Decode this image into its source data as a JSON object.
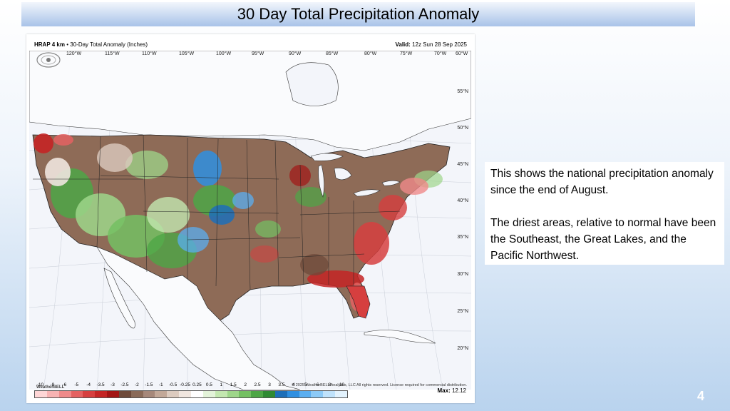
{
  "slide": {
    "title": "30 Day Total Precipitation Anomaly",
    "page_number": "4"
  },
  "map": {
    "header_model": "HRAP 4 km",
    "header_desc": "30-Day Total Anomaly (Inches)",
    "valid_label": "Valid:",
    "valid_time": "12z Sun 28 Sep 2025",
    "credit": "© 2025 WeatherBELL Analytics, LLC All rights reserved. License required for commercial distribution.",
    "logo_text": "WeatherBELL",
    "max_label": "Max:",
    "max_value": "12.12",
    "longitudes": [
      "120°W",
      "115°W",
      "110°W",
      "105°W",
      "100°W",
      "95°W",
      "90°W",
      "85°W",
      "80°W",
      "75°W",
      "70°W",
      "60°W"
    ],
    "latitudes": [
      "55°N",
      "50°N",
      "45°N",
      "40°N",
      "35°N",
      "30°N",
      "25°N",
      "20°N"
    ],
    "legend_values": [
      "-10",
      "-8",
      "-6",
      "-5",
      "-4",
      "-3.5",
      "-3",
      "-2.5",
      "-2",
      "-1.5",
      "-1",
      "-0.5",
      "-0.25",
      "0.25",
      "0.5",
      "1",
      "1.5",
      "2",
      "2.5",
      "3",
      "3.5",
      "4",
      "5",
      "6",
      "8",
      "10"
    ],
    "legend_colors": [
      "#ffd6d6",
      "#f8b3b3",
      "#ef8a8a",
      "#e46262",
      "#d63f3f",
      "#c42525",
      "#a31515",
      "#6e4a3a",
      "#8a6a58",
      "#a6887a",
      "#c2a898",
      "#dccbbf",
      "#f0e6df",
      "#ffffff",
      "#e3f3d9",
      "#c3e7b0",
      "#9ed68a",
      "#74c063",
      "#4da646",
      "#2f8a33",
      "#1d6fb8",
      "#2f8fe0",
      "#5aaef0",
      "#8ccaf7",
      "#bfe2fb",
      "#e2f2fd"
    ]
  },
  "note": {
    "paragraph1": "This shows the national precipitation anomaly since the end of August.",
    "paragraph2": "The driest areas, relative to normal have been the Southeast, the Great Lakes, and the Pacific Northwest."
  }
}
